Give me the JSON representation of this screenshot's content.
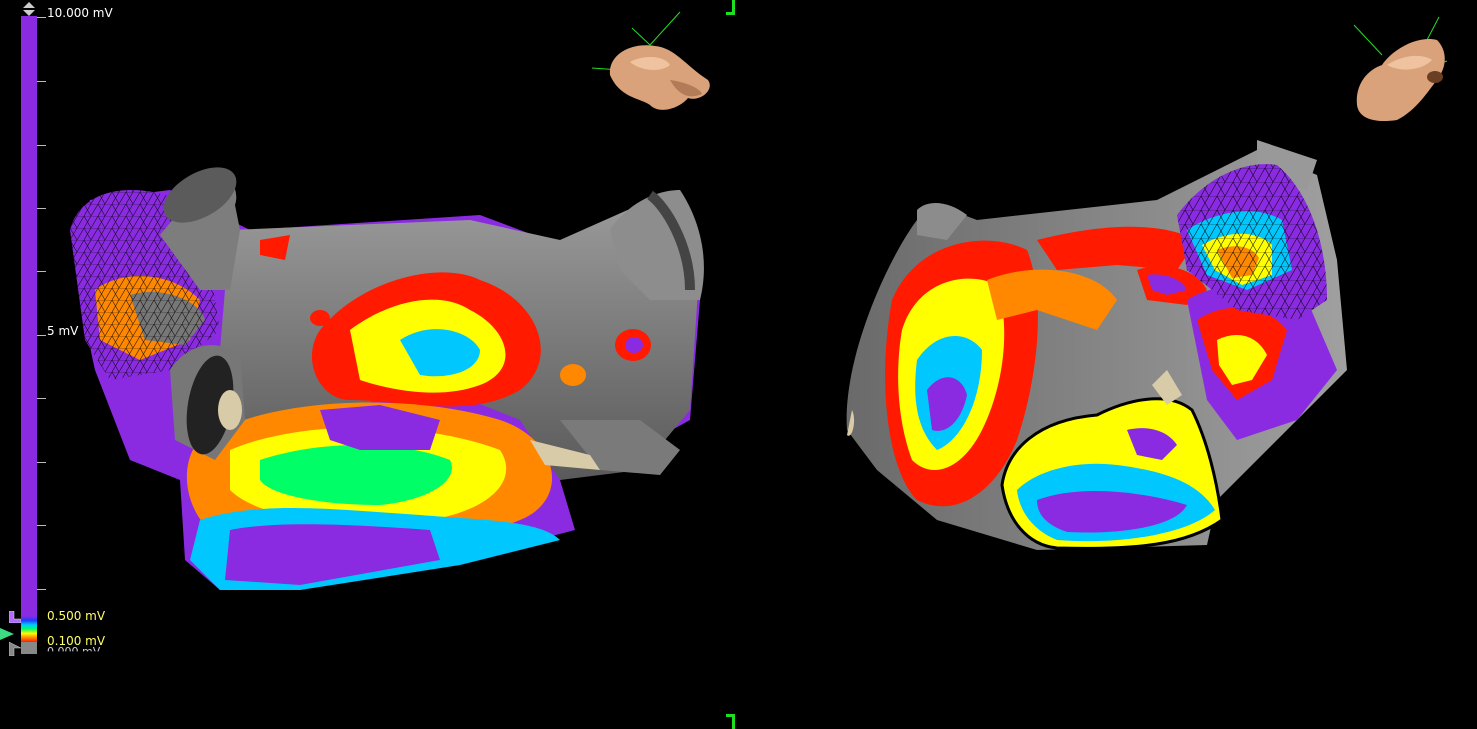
{
  "color_scale": {
    "max_label": "10.000 mV",
    "mid_label": "5 mV",
    "upper_threshold_label": "0.500 mV",
    "lower_threshold_label": "0.100 mV",
    "min_label": "0.000 mV",
    "max_value_mV": 10.0,
    "upper_threshold_mV": 0.5,
    "lower_threshold_mV": 0.1,
    "min_value_mV": 0.0,
    "colors": {
      "above_threshold": "#8a2be2",
      "gradient": [
        "#8a2be2",
        "#1e3cff",
        "#00c8ff",
        "#00ff66",
        "#ffff00",
        "#ff8800",
        "#ff1a00"
      ],
      "below_threshold": "#888888",
      "max_label": "#ffffff",
      "threshold_labels": "#ffff66"
    }
  },
  "views": [
    {
      "name": "left-view",
      "orientation_icon": "heart-orientation-icon"
    },
    {
      "name": "right-view",
      "orientation_icon": "heart-orientation-icon"
    }
  ],
  "viewport_frame_color": "#1fe01f"
}
